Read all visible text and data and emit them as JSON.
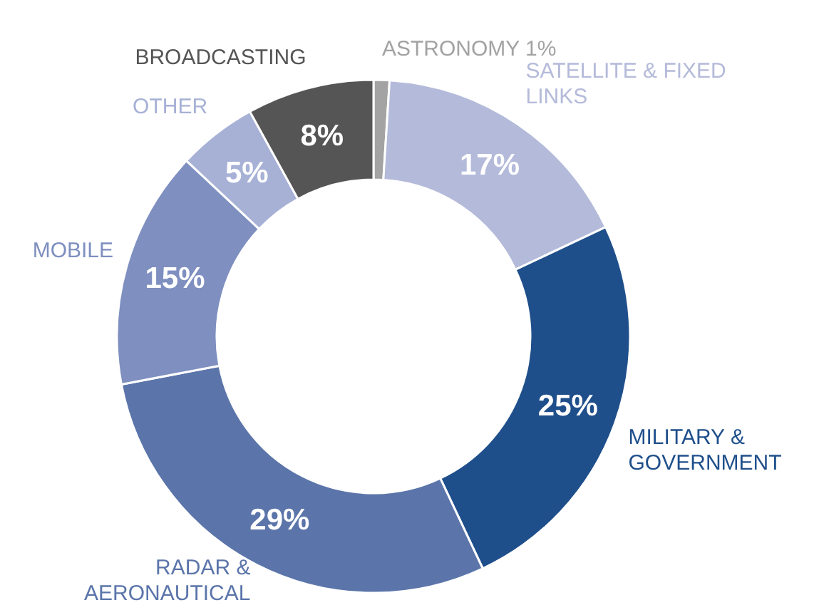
{
  "chart_data": {
    "type": "donut",
    "categories": [
      "ASTRONOMY",
      "SATELLITE & FIXED LINKS",
      "MILITARY & GOVERNMENT",
      "RADAR & AERONAUTICAL",
      "MOBILE",
      "OTHER",
      "BROADCASTING"
    ],
    "values": [
      1,
      17,
      25,
      29,
      15,
      5,
      8
    ],
    "value_labels": [
      "1%",
      "17%",
      "25%",
      "29%",
      "15%",
      "5%",
      "8%"
    ],
    "colors": [
      "#a3a3a3",
      "#b4bad9",
      "#1f4f8b",
      "#5b75aa",
      "#7e8fc0",
      "#a7b1d6",
      "#555555"
    ]
  }
}
